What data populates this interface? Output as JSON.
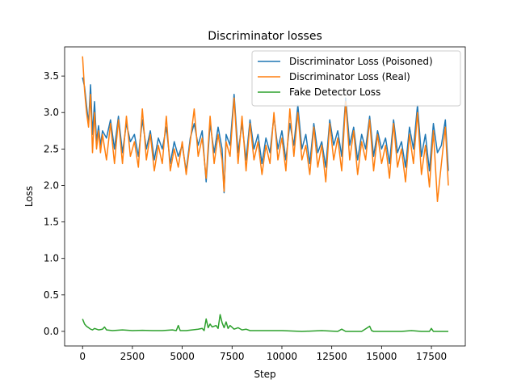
{
  "chart_data": {
    "type": "line",
    "title": "Discriminator losses",
    "xlabel": "Step",
    "ylabel": "Loss",
    "xlim": [
      -900,
      19200
    ],
    "ylim": [
      -0.2,
      3.9
    ],
    "xticks": [
      0,
      2500,
      5000,
      7500,
      10000,
      12500,
      15000,
      17500
    ],
    "xtick_labels": [
      "0",
      "2500",
      "5000",
      "7500",
      "10000",
      "12500",
      "15000",
      "17500"
    ],
    "yticks": [
      0.0,
      0.5,
      1.0,
      1.5,
      2.0,
      2.5,
      3.0,
      3.5
    ],
    "ytick_labels": [
      "0.0",
      "0.5",
      "1.0",
      "1.5",
      "2.0",
      "2.5",
      "3.0",
      "3.5"
    ],
    "grid": false,
    "legend_position": "top-right",
    "series": [
      {
        "name": "Discriminator Loss (Poisoned)",
        "color": "#1f77b4",
        "x": [
          0,
          100,
          200,
          300,
          400,
          500,
          600,
          700,
          800,
          900,
          1000,
          1200,
          1400,
          1600,
          1800,
          2000,
          2200,
          2400,
          2600,
          2800,
          3000,
          3200,
          3400,
          3600,
          3800,
          4000,
          4200,
          4400,
          4600,
          4800,
          5000,
          5200,
          5400,
          5600,
          5800,
          6000,
          6200,
          6400,
          6600,
          6800,
          7000,
          7100,
          7200,
          7400,
          7600,
          7800,
          8000,
          8200,
          8400,
          8600,
          8800,
          9000,
          9200,
          9400,
          9600,
          9800,
          10000,
          10200,
          10400,
          10600,
          10800,
          11000,
          11200,
          11400,
          11600,
          11800,
          12000,
          12200,
          12400,
          12600,
          12800,
          13000,
          13200,
          13400,
          13600,
          13800,
          14000,
          14200,
          14400,
          14600,
          14800,
          15000,
          15200,
          15400,
          15600,
          15800,
          16000,
          16200,
          16400,
          16600,
          16800,
          17000,
          17200,
          17400,
          17600,
          17800,
          18000,
          18200,
          18350
        ],
        "y": [
          3.48,
          3.35,
          3.1,
          2.85,
          3.38,
          2.7,
          3.15,
          2.6,
          2.82,
          2.55,
          2.75,
          2.65,
          2.9,
          2.5,
          2.95,
          2.45,
          2.85,
          2.6,
          2.7,
          2.4,
          2.9,
          2.5,
          2.75,
          2.35,
          2.65,
          2.5,
          2.8,
          2.3,
          2.6,
          2.4,
          2.55,
          2.2,
          2.65,
          2.85,
          2.55,
          2.75,
          2.05,
          2.85,
          2.45,
          2.8,
          2.5,
          1.9,
          2.7,
          2.55,
          3.25,
          2.45,
          2.85,
          2.35,
          2.9,
          2.5,
          2.7,
          2.3,
          2.65,
          2.45,
          2.95,
          2.5,
          2.75,
          2.35,
          2.85,
          2.55,
          3.1,
          2.5,
          2.7,
          2.3,
          2.85,
          2.45,
          2.6,
          2.25,
          2.9,
          2.55,
          2.75,
          2.4,
          3.2,
          2.55,
          2.8,
          2.35,
          2.7,
          2.5,
          2.95,
          2.4,
          2.75,
          2.5,
          2.65,
          2.3,
          2.9,
          2.45,
          2.6,
          2.25,
          2.8,
          2.5,
          3.1,
          2.4,
          2.7,
          2.2,
          2.85,
          2.45,
          2.55,
          2.9,
          2.2
        ]
      },
      {
        "name": "Discriminator Loss (Real)",
        "color": "#ff7f0e",
        "x": [
          0,
          100,
          200,
          300,
          400,
          500,
          600,
          700,
          800,
          900,
          1000,
          1200,
          1400,
          1600,
          1800,
          2000,
          2200,
          2400,
          2600,
          2800,
          3000,
          3200,
          3400,
          3600,
          3800,
          4000,
          4200,
          4400,
          4600,
          4800,
          5000,
          5200,
          5400,
          5600,
          5800,
          6000,
          6200,
          6400,
          6600,
          6800,
          7000,
          7100,
          7200,
          7400,
          7600,
          7800,
          8000,
          8200,
          8400,
          8600,
          8800,
          9000,
          9200,
          9400,
          9600,
          9800,
          10000,
          10200,
          10400,
          10600,
          10800,
          11000,
          11200,
          11400,
          11600,
          11800,
          12000,
          12200,
          12400,
          12600,
          12800,
          13000,
          13200,
          13400,
          13600,
          13800,
          14000,
          14200,
          14400,
          14600,
          14800,
          15000,
          15200,
          15400,
          15600,
          15800,
          16000,
          16200,
          16400,
          16600,
          16800,
          17000,
          17200,
          17400,
          17600,
          17800,
          18000,
          18200,
          18350
        ],
        "y": [
          3.77,
          3.3,
          3.0,
          2.8,
          3.25,
          2.45,
          3.0,
          2.5,
          2.75,
          2.45,
          2.7,
          2.35,
          2.85,
          2.3,
          2.9,
          2.3,
          2.95,
          2.4,
          2.6,
          2.25,
          3.05,
          2.35,
          2.7,
          2.2,
          2.55,
          2.3,
          2.95,
          2.2,
          2.5,
          2.25,
          2.6,
          2.15,
          2.6,
          3.05,
          2.4,
          2.65,
          2.1,
          2.95,
          2.3,
          2.7,
          2.35,
          1.92,
          2.6,
          2.4,
          3.2,
          2.3,
          2.95,
          2.2,
          2.85,
          2.35,
          2.6,
          2.15,
          2.55,
          2.3,
          3.0,
          2.35,
          2.65,
          2.2,
          3.05,
          2.4,
          3.0,
          2.35,
          2.55,
          2.15,
          2.8,
          2.25,
          2.55,
          2.05,
          2.85,
          2.35,
          2.65,
          2.2,
          3.15,
          2.35,
          2.75,
          2.15,
          2.6,
          2.35,
          2.9,
          2.2,
          2.7,
          2.3,
          2.55,
          2.1,
          2.85,
          2.25,
          2.5,
          2.05,
          2.7,
          2.3,
          3.0,
          2.15,
          2.55,
          1.98,
          2.75,
          1.78,
          2.3,
          2.8,
          2.0
        ]
      },
      {
        "name": "Fake Detector Loss",
        "color": "#2ca02c",
        "x": [
          0,
          100,
          200,
          300,
          400,
          500,
          600,
          800,
          1000,
          1100,
          1200,
          1500,
          2000,
          2500,
          3000,
          3500,
          4000,
          4500,
          4700,
          4800,
          4900,
          5200,
          5500,
          5800,
          6000,
          6100,
          6200,
          6300,
          6400,
          6500,
          6700,
          6800,
          6900,
          7000,
          7100,
          7200,
          7300,
          7400,
          7600,
          7800,
          8000,
          8200,
          8400,
          9000,
          10000,
          11000,
          12000,
          12800,
          13000,
          13200,
          14000,
          14400,
          14500,
          14600,
          15000,
          16000,
          16500,
          17000,
          17400,
          17500,
          17600,
          18000,
          18350
        ],
        "y": [
          0.17,
          0.1,
          0.07,
          0.05,
          0.03,
          0.02,
          0.04,
          0.02,
          0.03,
          0.06,
          0.02,
          0.01,
          0.02,
          0.01,
          0.015,
          0.01,
          0.01,
          0.02,
          0.01,
          0.08,
          0.01,
          0.01,
          0.02,
          0.03,
          0.04,
          0.01,
          0.17,
          0.05,
          0.1,
          0.06,
          0.08,
          0.04,
          0.23,
          0.12,
          0.05,
          0.13,
          0.04,
          0.08,
          0.03,
          0.05,
          0.02,
          0.03,
          0.01,
          0.01,
          0.01,
          0.0,
          0.01,
          0.0,
          0.03,
          0.0,
          0.0,
          0.07,
          0.01,
          0.0,
          0.0,
          0.0,
          0.01,
          0.0,
          0.0,
          0.04,
          0.0,
          0.0,
          0.0
        ]
      }
    ]
  }
}
